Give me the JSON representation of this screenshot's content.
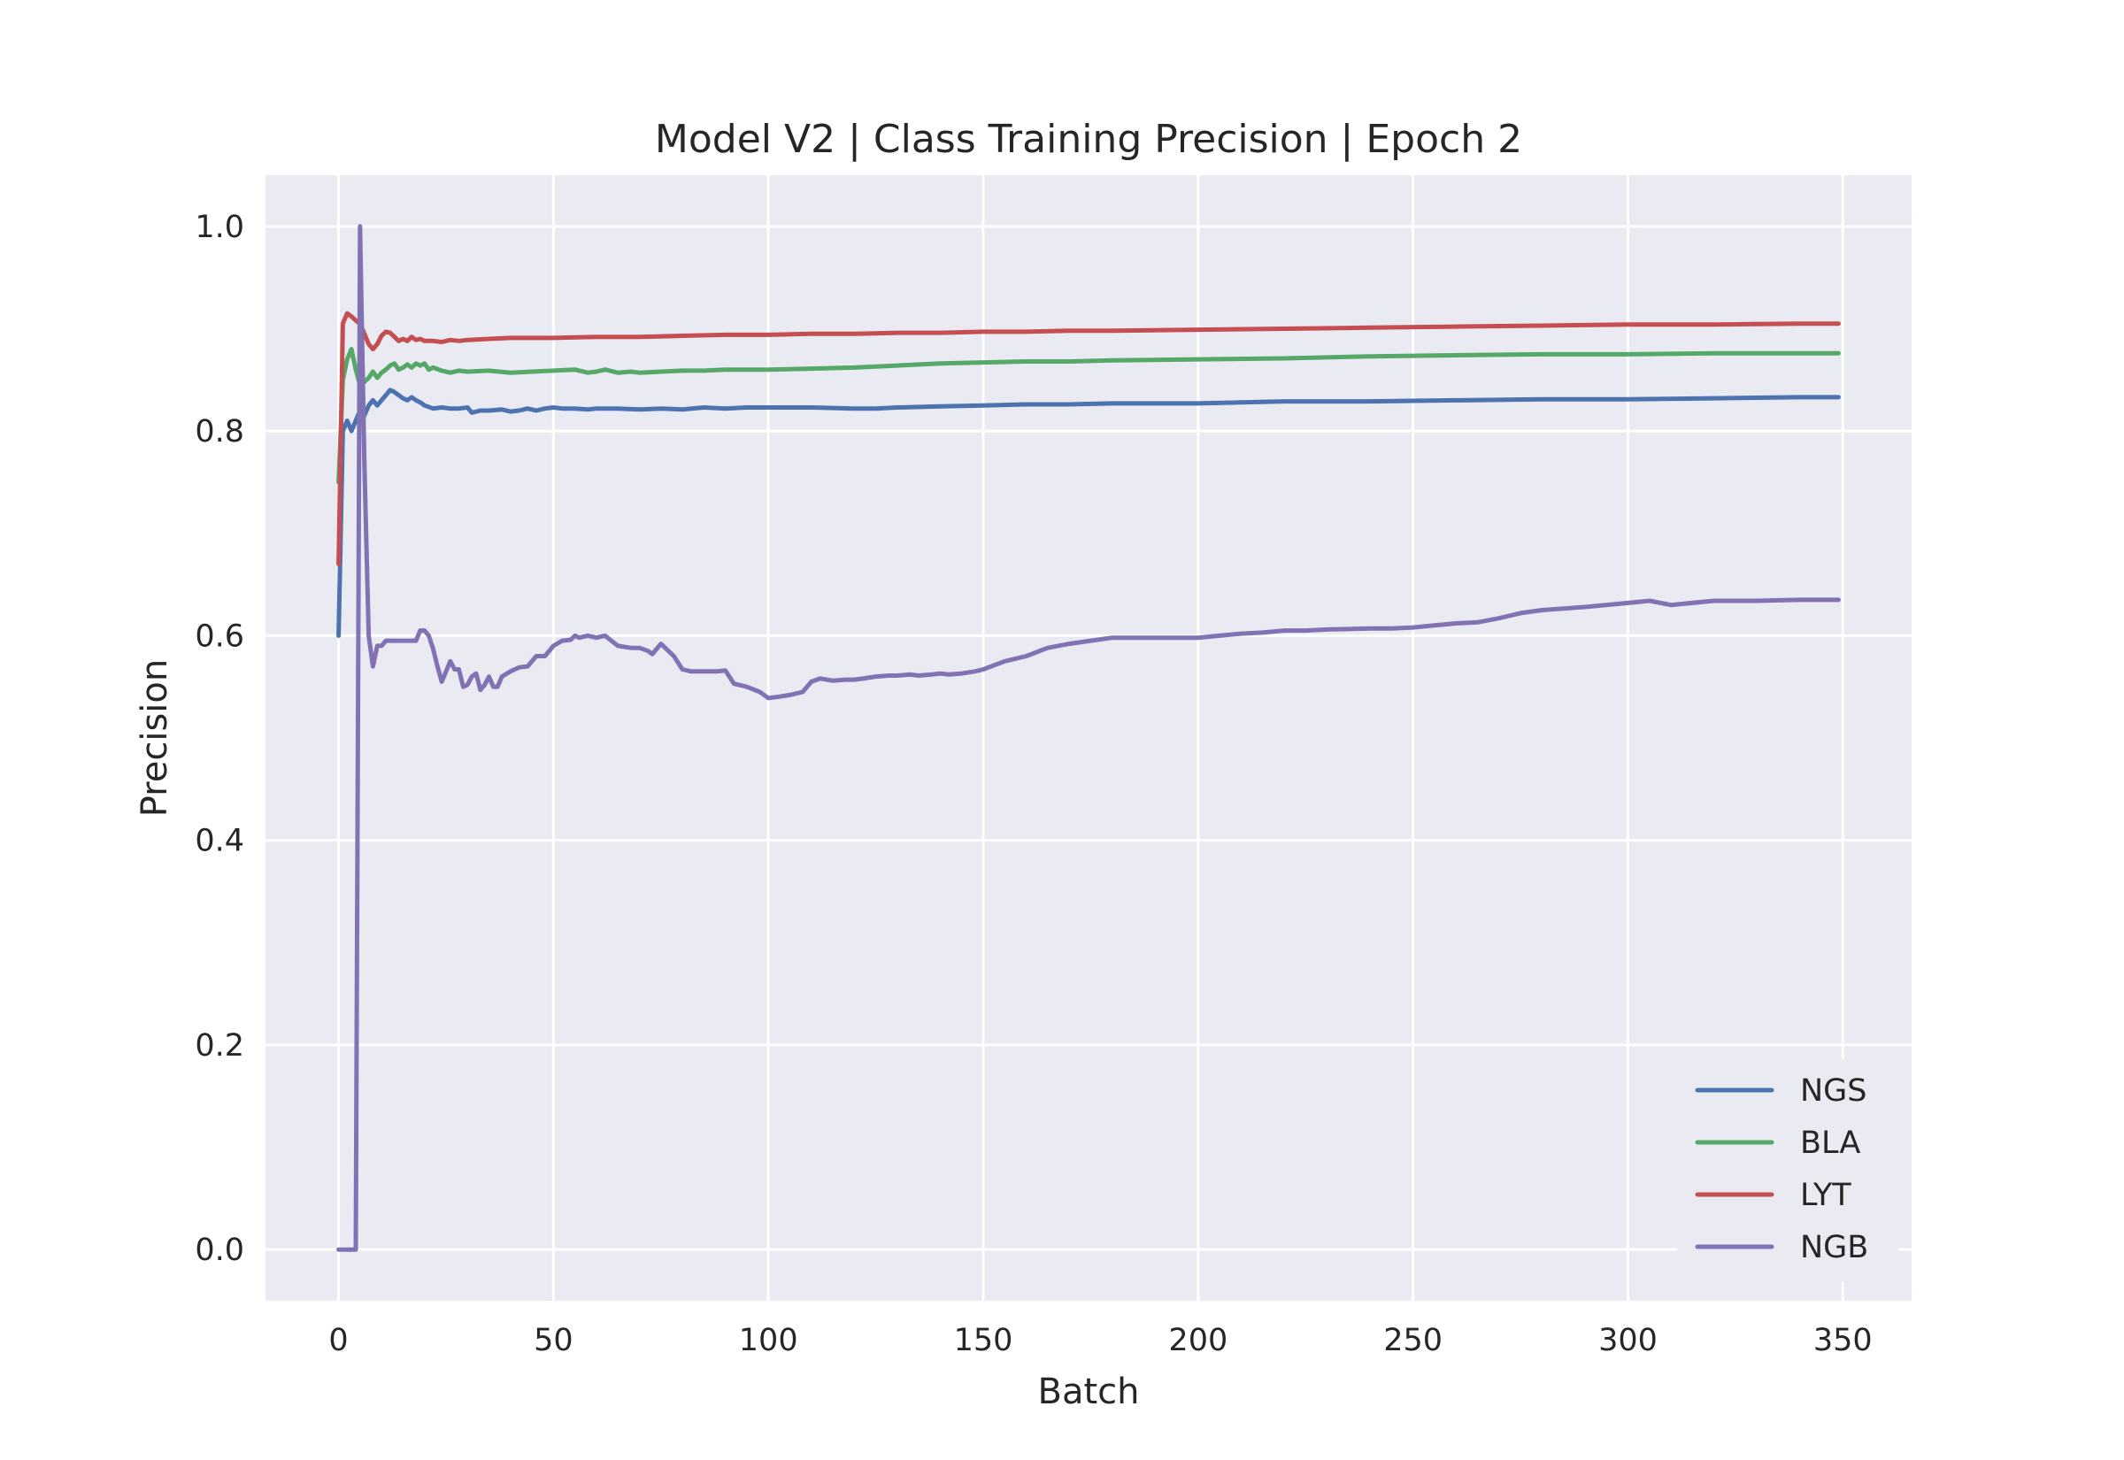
{
  "chart_data": {
    "type": "line",
    "title": "Model V2 | Class Training Precision | Epoch 2",
    "xlabel": "Batch",
    "ylabel": "Precision",
    "xlim": [
      -17,
      366
    ],
    "ylim": [
      -0.05,
      1.05
    ],
    "xticks": [
      0,
      50,
      100,
      150,
      200,
      250,
      300,
      350
    ],
    "yticks": [
      0.0,
      0.2,
      0.4,
      0.6,
      0.8,
      1.0
    ],
    "xtick_labels": [
      "0",
      "50",
      "100",
      "150",
      "200",
      "250",
      "300",
      "350"
    ],
    "ytick_labels": [
      "0.0",
      "0.2",
      "0.4",
      "0.6",
      "0.8",
      "1.0"
    ],
    "grid": true,
    "background": "#eaeaf2",
    "legend_position": "lower-right",
    "series": [
      {
        "name": "NGS",
        "color": "#4c72b0",
        "x": [
          0,
          1,
          2,
          3,
          4,
          5,
          6,
          7,
          8,
          9,
          10,
          11,
          12,
          13,
          14,
          15,
          16,
          17,
          18,
          19,
          20,
          22,
          24,
          26,
          28,
          30,
          31,
          33,
          35,
          38,
          40,
          42,
          44,
          46,
          48,
          50,
          52,
          55,
          58,
          60,
          65,
          70,
          75,
          80,
          85,
          90,
          95,
          100,
          110,
          120,
          125,
          130,
          140,
          150,
          160,
          170,
          180,
          190,
          200,
          220,
          240,
          260,
          280,
          300,
          320,
          340,
          349
        ],
        "y": [
          0.6,
          0.8,
          0.81,
          0.8,
          0.81,
          0.82,
          0.815,
          0.825,
          0.83,
          0.825,
          0.83,
          0.835,
          0.84,
          0.838,
          0.835,
          0.832,
          0.83,
          0.833,
          0.83,
          0.828,
          0.825,
          0.822,
          0.823,
          0.822,
          0.822,
          0.823,
          0.818,
          0.82,
          0.82,
          0.821,
          0.819,
          0.82,
          0.822,
          0.82,
          0.822,
          0.823,
          0.822,
          0.822,
          0.821,
          0.822,
          0.822,
          0.821,
          0.822,
          0.821,
          0.823,
          0.822,
          0.823,
          0.823,
          0.823,
          0.822,
          0.822,
          0.823,
          0.824,
          0.825,
          0.826,
          0.826,
          0.827,
          0.827,
          0.827,
          0.829,
          0.829,
          0.83,
          0.831,
          0.831,
          0.832,
          0.833,
          0.833
        ]
      },
      {
        "name": "BLA",
        "color": "#55a868",
        "x": [
          0,
          1,
          2,
          3,
          4,
          5,
          6,
          7,
          8,
          9,
          10,
          11,
          12,
          13,
          14,
          15,
          16,
          17,
          18,
          19,
          20,
          21,
          22,
          24,
          26,
          28,
          30,
          35,
          40,
          45,
          50,
          55,
          58,
          60,
          62,
          65,
          68,
          70,
          75,
          80,
          85,
          90,
          95,
          100,
          110,
          120,
          130,
          140,
          150,
          160,
          170,
          180,
          200,
          220,
          240,
          260,
          280,
          300,
          320,
          340,
          349
        ],
        "y": [
          0.75,
          0.85,
          0.87,
          0.88,
          0.86,
          0.845,
          0.848,
          0.852,
          0.858,
          0.852,
          0.857,
          0.86,
          0.864,
          0.866,
          0.86,
          0.862,
          0.865,
          0.862,
          0.866,
          0.864,
          0.866,
          0.86,
          0.862,
          0.859,
          0.857,
          0.859,
          0.858,
          0.859,
          0.857,
          0.858,
          0.859,
          0.86,
          0.857,
          0.858,
          0.86,
          0.857,
          0.858,
          0.857,
          0.858,
          0.859,
          0.859,
          0.86,
          0.86,
          0.86,
          0.861,
          0.862,
          0.864,
          0.866,
          0.867,
          0.868,
          0.868,
          0.869,
          0.87,
          0.871,
          0.873,
          0.874,
          0.875,
          0.875,
          0.876,
          0.876,
          0.876
        ]
      },
      {
        "name": "LYT",
        "color": "#c44e52",
        "x": [
          0,
          1,
          2,
          3,
          4,
          5,
          6,
          7,
          8,
          9,
          10,
          11,
          12,
          13,
          14,
          15,
          16,
          17,
          18,
          19,
          20,
          22,
          24,
          26,
          28,
          30,
          35,
          40,
          50,
          60,
          70,
          80,
          90,
          100,
          110,
          120,
          130,
          140,
          150,
          160,
          170,
          180,
          200,
          220,
          240,
          260,
          280,
          300,
          320,
          340,
          349
        ],
        "y": [
          0.67,
          0.905,
          0.915,
          0.912,
          0.908,
          0.905,
          0.895,
          0.885,
          0.88,
          0.885,
          0.893,
          0.897,
          0.896,
          0.892,
          0.888,
          0.89,
          0.888,
          0.892,
          0.889,
          0.89,
          0.888,
          0.888,
          0.887,
          0.889,
          0.888,
          0.889,
          0.89,
          0.891,
          0.891,
          0.892,
          0.892,
          0.893,
          0.894,
          0.894,
          0.895,
          0.895,
          0.896,
          0.896,
          0.897,
          0.897,
          0.898,
          0.898,
          0.899,
          0.9,
          0.901,
          0.902,
          0.903,
          0.904,
          0.904,
          0.905,
          0.905
        ]
      },
      {
        "name": "NGB",
        "color": "#8172b3",
        "x": [
          0,
          2,
          4,
          5,
          6,
          7,
          8,
          9,
          10,
          11,
          12,
          15,
          18,
          19,
          20,
          21,
          22,
          23,
          24,
          25,
          26,
          27,
          28,
          29,
          30,
          31,
          32,
          33,
          34,
          35,
          36,
          37,
          38,
          40,
          42,
          44,
          45,
          46,
          48,
          50,
          52,
          54,
          55,
          56,
          58,
          60,
          62,
          65,
          68,
          70,
          72,
          73,
          75,
          78,
          80,
          82,
          85,
          86,
          88,
          90,
          92,
          95,
          98,
          100,
          102,
          105,
          108,
          110,
          112,
          115,
          118,
          120,
          122,
          125,
          128,
          130,
          133,
          135,
          138,
          140,
          142,
          145,
          148,
          150,
          155,
          160,
          165,
          170,
          175,
          180,
          185,
          190,
          195,
          200,
          205,
          210,
          215,
          220,
          225,
          230,
          240,
          245,
          250,
          255,
          260,
          265,
          270,
          275,
          280,
          290,
          300,
          305,
          310,
          320,
          330,
          340,
          349
        ],
        "y": [
          0.0,
          0.0,
          0.0,
          1.0,
          0.77,
          0.6,
          0.57,
          0.59,
          0.59,
          0.595,
          0.595,
          0.595,
          0.595,
          0.605,
          0.605,
          0.6,
          0.587,
          0.57,
          0.555,
          0.565,
          0.575,
          0.567,
          0.567,
          0.55,
          0.552,
          0.56,
          0.563,
          0.547,
          0.552,
          0.56,
          0.55,
          0.55,
          0.56,
          0.565,
          0.569,
          0.57,
          0.575,
          0.58,
          0.58,
          0.59,
          0.595,
          0.596,
          0.6,
          0.598,
          0.6,
          0.598,
          0.6,
          0.59,
          0.588,
          0.588,
          0.585,
          0.582,
          0.592,
          0.58,
          0.567,
          0.565,
          0.565,
          0.565,
          0.565,
          0.566,
          0.553,
          0.55,
          0.545,
          0.539,
          0.54,
          0.542,
          0.545,
          0.555,
          0.558,
          0.556,
          0.557,
          0.557,
          0.558,
          0.56,
          0.561,
          0.561,
          0.562,
          0.561,
          0.562,
          0.563,
          0.562,
          0.563,
          0.565,
          0.567,
          0.575,
          0.58,
          0.588,
          0.592,
          0.595,
          0.598,
          0.598,
          0.598,
          0.598,
          0.598,
          0.6,
          0.602,
          0.603,
          0.605,
          0.605,
          0.606,
          0.607,
          0.607,
          0.608,
          0.61,
          0.612,
          0.613,
          0.617,
          0.622,
          0.625,
          0.628,
          0.632,
          0.634,
          0.63,
          0.634,
          0.634,
          0.635,
          0.635
        ]
      }
    ]
  }
}
